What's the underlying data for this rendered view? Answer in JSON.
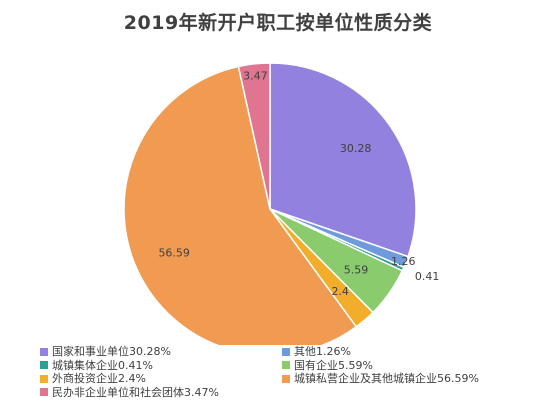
{
  "chart_data": {
    "type": "pie",
    "title": "2019年新开户职工按单位性质分类",
    "slices": [
      {
        "name": "国家和事业单位",
        "value": 30.28,
        "label": "30.28",
        "legend": "国家和事业单位30.28%",
        "color": "#9381DF"
      },
      {
        "name": "其他",
        "value": 1.26,
        "label": "1.26",
        "legend": "其他1.26%",
        "color": "#6F9BDC"
      },
      {
        "name": "城镇集体企业",
        "value": 0.41,
        "label": "0.41",
        "legend": "城镇集体企业0.41%",
        "color": "#2E9E96"
      },
      {
        "name": "国有企业",
        "value": 5.59,
        "label": "5.59",
        "legend": "国有企业5.59%",
        "color": "#8ACB6E"
      },
      {
        "name": "外商投资企业",
        "value": 2.4,
        "label": "2.4",
        "legend": "外商投资企业2.4%",
        "color": "#F2AE2A"
      },
      {
        "name": "城镇私营企业及其他城镇企业",
        "value": 56.59,
        "label": "56.59",
        "legend": "城镇私营企业及其他城镇企业56.59%",
        "color": "#F09A52"
      },
      {
        "name": "民办非企业单位和社会团体",
        "value": 3.47,
        "label": "3.47",
        "legend": "民办非企业单位和社会团体3.47%",
        "color": "#E07592"
      }
    ],
    "legend_position": "bottom",
    "legend_order": [
      0,
      1,
      2,
      3,
      4,
      5,
      6
    ]
  }
}
